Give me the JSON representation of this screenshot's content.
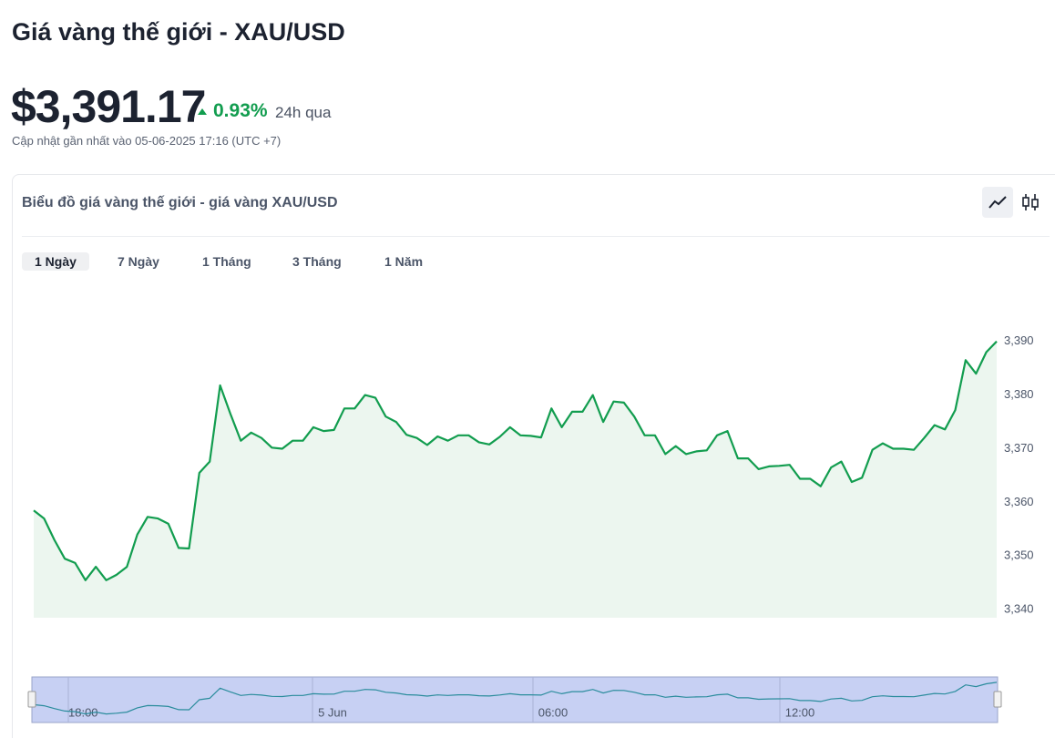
{
  "header": {
    "title": "Giá vàng thế giới - XAU/USD",
    "price": "$3,391.17",
    "change": "0.93%",
    "change_period": "24h qua",
    "updated": "Cập nhật gần nhất vào 05-06-2025 17:16 (UTC +7)"
  },
  "card": {
    "title": "Biểu đồ giá vàng thế giới - giá vàng XAU/USD",
    "tabs": [
      "1 Ngày",
      "7 Ngày",
      "1 Tháng",
      "3 Tháng",
      "1 Năm"
    ]
  },
  "chart_data": {
    "type": "line",
    "color": "#129d4f",
    "fill": "#ecf6ef",
    "values": [
      3358.5,
      3357,
      3353,
      3349.5,
      3348.7,
      3345.5,
      3348,
      3345.5,
      3346.5,
      3348,
      3354,
      3357.3,
      3357,
      3356,
      3351.5,
      3351.4,
      3365.5,
      3367.6,
      3381.8,
      3376.5,
      3371.5,
      3373,
      3372,
      3370.2,
      3370,
      3371.5,
      3371.5,
      3374,
      3373.3,
      3373.5,
      3377.5,
      3377.5,
      3380,
      3379.5,
      3376,
      3375,
      3372.6,
      3372,
      3370.7,
      3372.3,
      3371.5,
      3372.5,
      3372.5,
      3371.2,
      3370.8,
      3372.2,
      3374,
      3372.5,
      3372.4,
      3372.1,
      3377.5,
      3374,
      3376.9,
      3376.9,
      3380,
      3375,
      3378.8,
      3378.6,
      3376,
      3372.5,
      3372.5,
      3369,
      3370.5,
      3369,
      3369.5,
      3369.7,
      3372.5,
      3373.3,
      3368.2,
      3368.2,
      3366.2,
      3366.7,
      3366.8,
      3367,
      3364.4,
      3364.4,
      3363,
      3366.5,
      3367.6,
      3363.8,
      3364.6,
      3369.8,
      3371,
      3370,
      3370,
      3369.8,
      3372,
      3374.4,
      3373.6,
      3377.2,
      3386.5,
      3384,
      3388,
      3390
    ],
    "ylim": [
      3338.5,
      3392.5
    ],
    "yticks": [
      {
        "value": 3340,
        "label": "3,340"
      },
      {
        "value": 3350,
        "label": "3,350"
      },
      {
        "value": 3360,
        "label": "3,360"
      },
      {
        "value": 3370,
        "label": "3,370"
      },
      {
        "value": 3380,
        "label": "3,380"
      },
      {
        "value": 3390,
        "label": "3,390"
      }
    ],
    "navigator_labels": [
      "18:00",
      "5 Jun",
      "06:00",
      "12:00"
    ]
  }
}
